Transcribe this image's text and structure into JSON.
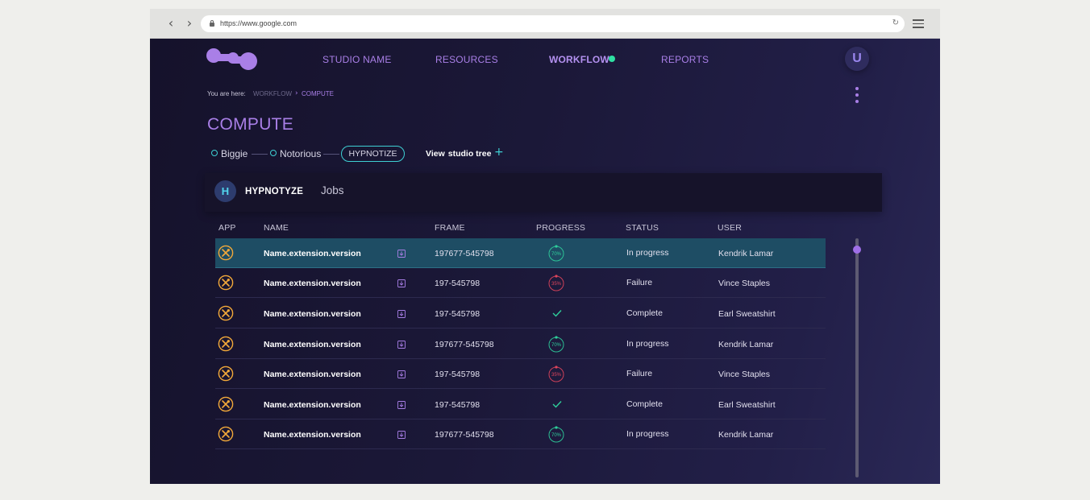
{
  "browser": {
    "url": "https://www.google.com",
    "back_glyph": "‹",
    "forward_glyph": "›",
    "reload_glyph": "↻"
  },
  "topnav": {
    "items": [
      "STUDIO NAME",
      "RESOURCES",
      "WORKFLOW",
      "REPORTS"
    ],
    "active": "WORKFLOW",
    "avatar_initial": "U"
  },
  "breadcrumb": {
    "label": "You are here:",
    "items": [
      "WORKFLOW",
      "COMPUTE"
    ],
    "separator": "›"
  },
  "page_title": "COMPUTE",
  "tree": {
    "nodes": [
      "Biggie",
      "Notorious"
    ],
    "current": "HYPNOTIZE",
    "view_prefix": "View",
    "view_label": "studio tree",
    "add_glyph": "+"
  },
  "panel": {
    "badge": "H",
    "title": "HYPNOTYZE",
    "subtitle": "Jobs"
  },
  "table": {
    "columns": [
      "APP",
      "NAME",
      "FRAME",
      "PROGRESS",
      "STATUS",
      "USER"
    ],
    "rows": [
      {
        "name": "Name.extension.version",
        "frame": "197677-545798",
        "progress": 70,
        "progress_label": "70%",
        "state": "progress",
        "status": "In progress",
        "user": "Kendrik Lamar",
        "selected": true
      },
      {
        "name": "Name.extension.version",
        "frame": "197-545798",
        "progress": 35,
        "progress_label": "35%",
        "state": "failure",
        "status": "Failure",
        "user": "Vince Staples",
        "selected": false
      },
      {
        "name": "Name.extension.version",
        "frame": "197-545798",
        "progress": 100,
        "progress_label": "",
        "state": "complete",
        "status": "Complete",
        "user": "Earl Sweatshirt",
        "selected": false
      },
      {
        "name": "Name.extension.version",
        "frame": "197677-545798",
        "progress": 70,
        "progress_label": "70%",
        "state": "progress",
        "status": "In progress",
        "user": "Kendrik Lamar",
        "selected": false
      },
      {
        "name": "Name.extension.version",
        "frame": "197-545798",
        "progress": 35,
        "progress_label": "35%",
        "state": "failure",
        "status": "Failure",
        "user": "Vince Staples",
        "selected": false
      },
      {
        "name": "Name.extension.version",
        "frame": "197-545798",
        "progress": 100,
        "progress_label": "",
        "state": "complete",
        "status": "Complete",
        "user": "Earl Sweatshirt",
        "selected": false
      },
      {
        "name": "Name.extension.version",
        "frame": "197677-545798",
        "progress": 70,
        "progress_label": "70%",
        "state": "progress",
        "status": "In progress",
        "user": "Kendrik Lamar",
        "selected": false
      }
    ]
  },
  "icons": {
    "app": "tools-icon",
    "export": "export-icon",
    "complete": "check-icon"
  },
  "colors": {
    "accent": "#a97fe7",
    "teal": "#3ed0d4",
    "progress_ring": "#2fcf9b",
    "failure_ring": "#e0455c",
    "app_icon": "#f3a93a",
    "selected_row": "#1e4d64",
    "active_dot": "#2fe0a3"
  }
}
